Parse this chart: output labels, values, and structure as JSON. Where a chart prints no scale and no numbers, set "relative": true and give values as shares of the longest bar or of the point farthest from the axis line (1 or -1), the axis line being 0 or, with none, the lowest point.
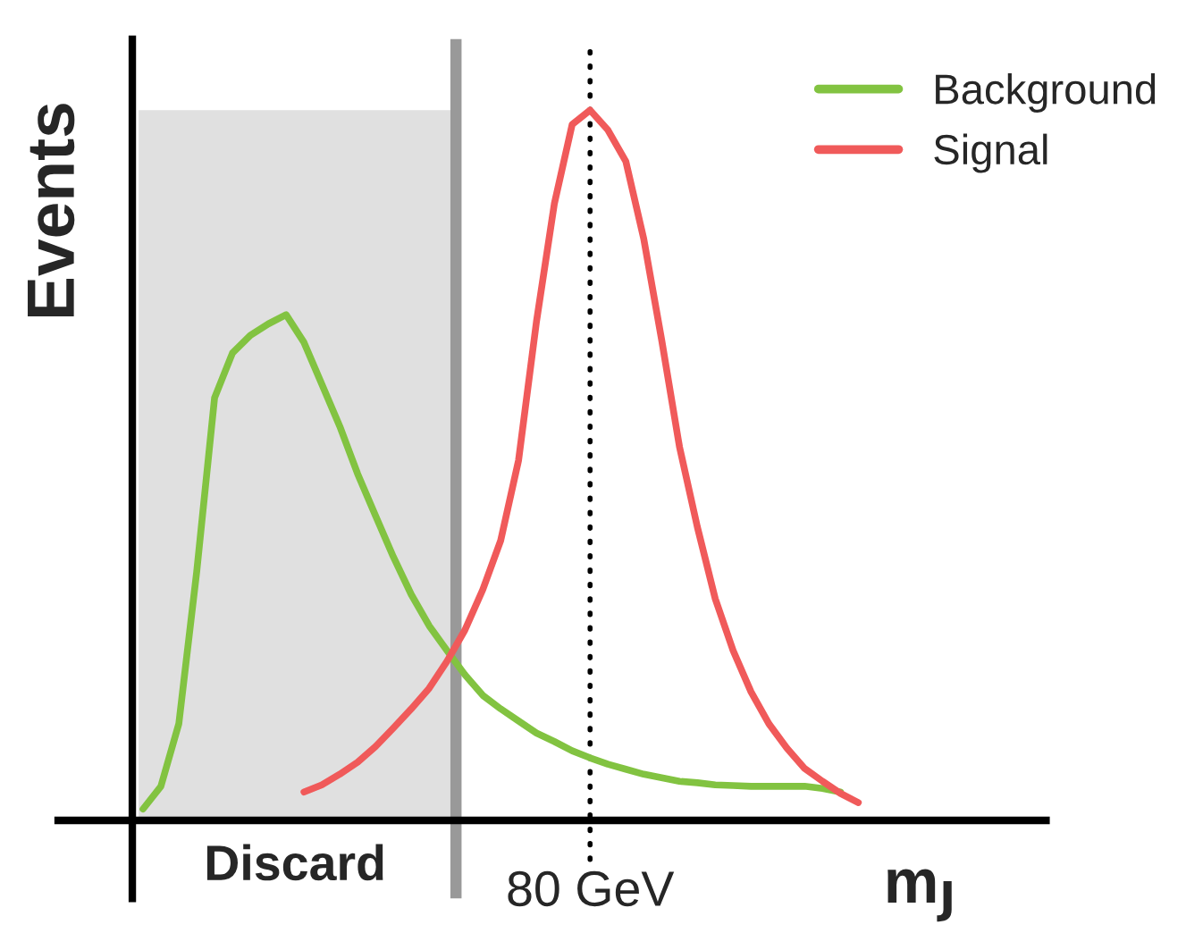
{
  "chart_data": {
    "type": "line",
    "relative": true,
    "xlabel": "m$_{J}$",
    "ylabel": "Events",
    "legend": "top right",
    "categories": [
      null,
      null,
      null,
      null,
      null,
      null,
      null,
      null,
      null,
      null,
      null,
      null,
      null,
      null,
      null,
      null,
      null,
      null,
      null,
      null,
      null,
      null,
      null,
      null,
      null,
      null,
      null,
      null,
      null,
      null,
      null,
      null,
      null,
      null,
      null,
      null,
      null,
      null,
      null,
      null,
      null
    ],
    "series": [
      {
        "name": "Background",
        "color": "#82c341",
        "values": [
          0.016,
          0.048,
          0.136,
          0.35,
          0.595,
          0.658,
          0.683,
          0.699,
          0.712,
          0.673,
          0.614,
          0.555,
          0.488,
          0.429,
          0.371,
          0.318,
          0.274,
          0.239,
          0.205,
          0.176,
          0.157,
          0.14,
          0.123,
          0.111,
          0.098,
          0.088,
          0.079,
          0.072,
          0.065,
          0.06,
          0.055,
          0.053,
          0.05,
          0.049,
          0.048,
          0.048,
          0.048,
          0.048,
          0.045,
          0.04,
          null
        ]
      },
      {
        "name": "Signal",
        "color": "#f05a5a",
        "values": [
          null,
          null,
          null,
          null,
          null,
          null,
          null,
          null,
          null,
          0.04,
          0.05,
          0.065,
          0.082,
          0.104,
          0.13,
          0.157,
          0.186,
          0.224,
          0.268,
          0.325,
          0.394,
          0.507,
          0.702,
          0.868,
          0.98,
          1.0,
          0.972,
          0.928,
          0.819,
          0.677,
          0.526,
          0.413,
          0.312,
          0.239,
          0.181,
          0.136,
          0.102,
          0.073,
          0.055,
          0.038,
          0.025
        ]
      }
    ],
    "annotations": [
      "Discard",
      "80 GeV"
    ]
  }
}
